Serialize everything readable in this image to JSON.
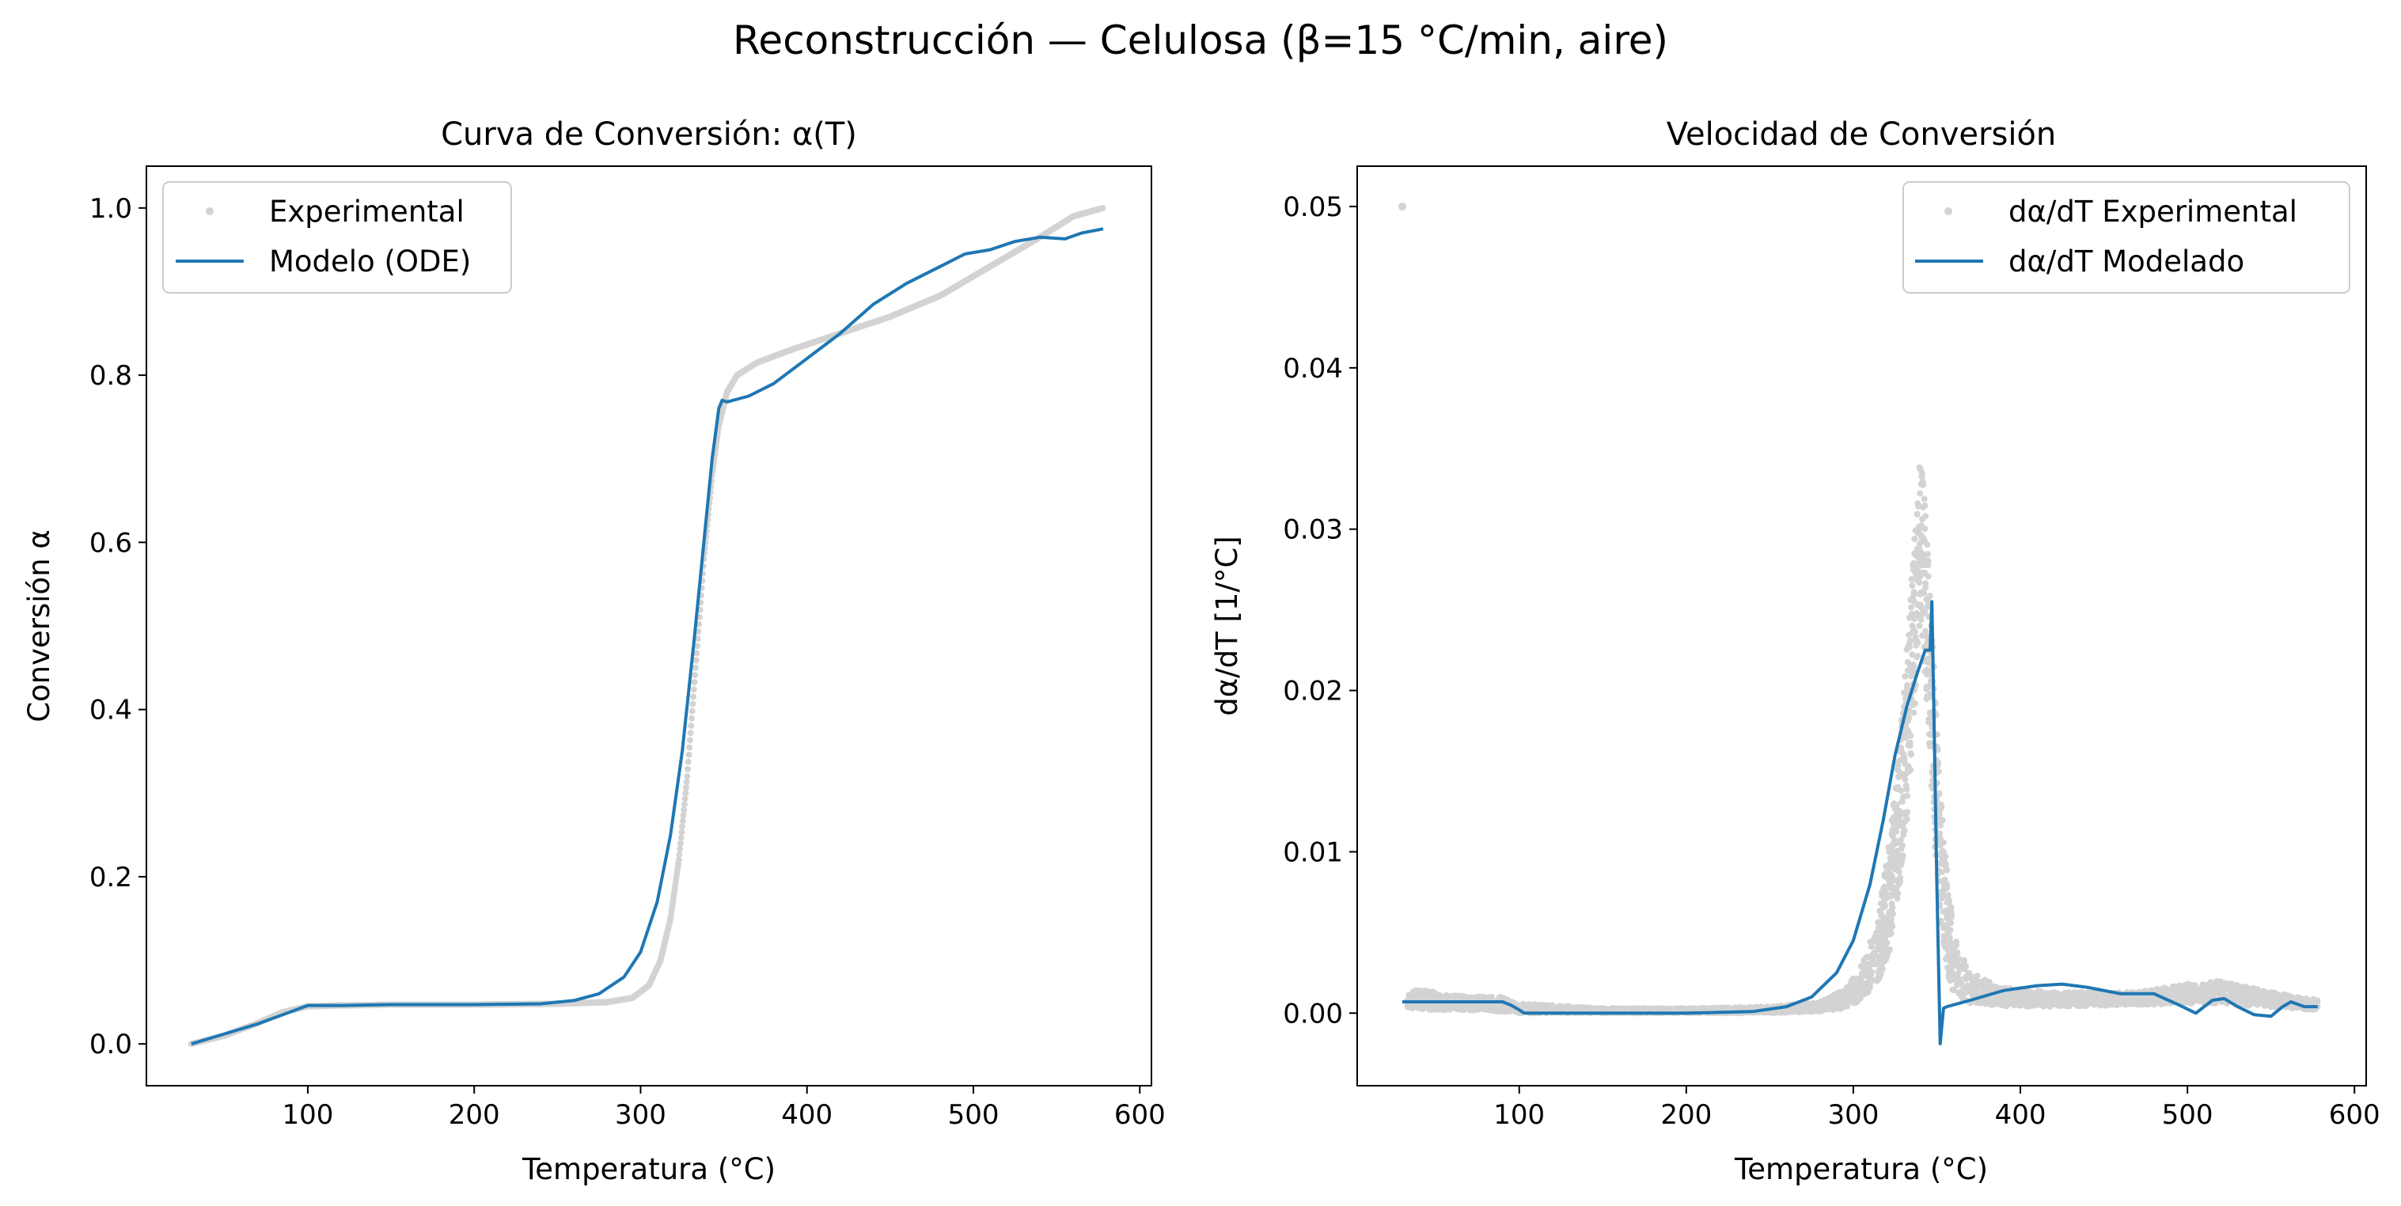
{
  "figure": {
    "suptitle": "Reconstrucción — Celulosa (β=15 °C/min, aire)"
  },
  "colors": {
    "experimental": "#d3d3d3",
    "model": "#1f77b4",
    "legend_border": "#cccccc"
  },
  "chart_data": [
    {
      "id": "left",
      "type": "line",
      "title": "Curva de Conversión: α(T)",
      "xlabel": "Temperatura (°C)",
      "ylabel": "Conversión α",
      "xlim": [
        3,
        607
      ],
      "ylim": [
        -0.05,
        1.05
      ],
      "xticks": [
        100,
        200,
        300,
        400,
        500,
        600
      ],
      "xtick_labels": [
        "100",
        "200",
        "300",
        "400",
        "500",
        "600"
      ],
      "yticks": [
        0.0,
        0.2,
        0.4,
        0.6,
        0.8,
        1.0
      ],
      "ytick_labels": [
        "0.0",
        "0.2",
        "0.4",
        "0.6",
        "0.8",
        "1.0"
      ],
      "grid": false,
      "legend_position": "upper-left",
      "legend": [
        "Experimental",
        "Modelo (ODE)"
      ],
      "series": [
        {
          "name": "Experimental",
          "style": "points",
          "points": [
            [
              30,
              0.0
            ],
            [
              50,
              0.01
            ],
            [
              70,
              0.025
            ],
            [
              85,
              0.038
            ],
            [
              100,
              0.045
            ],
            [
              120,
              0.046
            ],
            [
              150,
              0.047
            ],
            [
              200,
              0.047
            ],
            [
              250,
              0.048
            ],
            [
              280,
              0.05
            ],
            [
              295,
              0.055
            ],
            [
              305,
              0.07
            ],
            [
              312,
              0.1
            ],
            [
              318,
              0.15
            ],
            [
              323,
              0.22
            ],
            [
              328,
              0.32
            ],
            [
              333,
              0.45
            ],
            [
              338,
              0.58
            ],
            [
              343,
              0.68
            ],
            [
              347,
              0.74
            ],
            [
              352,
              0.78
            ],
            [
              358,
              0.8
            ],
            [
              370,
              0.815
            ],
            [
              390,
              0.83
            ],
            [
              420,
              0.85
            ],
            [
              450,
              0.87
            ],
            [
              480,
              0.895
            ],
            [
              510,
              0.93
            ],
            [
              540,
              0.965
            ],
            [
              560,
              0.99
            ],
            [
              578,
              1.0
            ]
          ]
        },
        {
          "name": "Modelo (ODE)",
          "style": "line",
          "points": [
            [
              30,
              0.0
            ],
            [
              50,
              0.012
            ],
            [
              70,
              0.024
            ],
            [
              85,
              0.035
            ],
            [
              100,
              0.046
            ],
            [
              120,
              0.046
            ],
            [
              150,
              0.047
            ],
            [
              200,
              0.047
            ],
            [
              240,
              0.048
            ],
            [
              260,
              0.052
            ],
            [
              275,
              0.06
            ],
            [
              290,
              0.08
            ],
            [
              300,
              0.11
            ],
            [
              310,
              0.17
            ],
            [
              318,
              0.25
            ],
            [
              325,
              0.35
            ],
            [
              332,
              0.48
            ],
            [
              338,
              0.6
            ],
            [
              343,
              0.7
            ],
            [
              347,
              0.76
            ],
            [
              349,
              0.77
            ],
            [
              352,
              0.768
            ],
            [
              365,
              0.775
            ],
            [
              380,
              0.79
            ],
            [
              400,
              0.82
            ],
            [
              420,
              0.85
            ],
            [
              440,
              0.885
            ],
            [
              460,
              0.91
            ],
            [
              480,
              0.93
            ],
            [
              495,
              0.945
            ],
            [
              510,
              0.95
            ],
            [
              525,
              0.96
            ],
            [
              540,
              0.965
            ],
            [
              555,
              0.963
            ],
            [
              565,
              0.97
            ],
            [
              578,
              0.975
            ]
          ]
        }
      ]
    },
    {
      "id": "right",
      "type": "line",
      "title": "Velocidad de Conversión",
      "xlabel": "Temperatura (°C)",
      "ylabel": "dα/dT [1/°C]",
      "xlim": [
        3,
        607
      ],
      "ylim": [
        -0.0045,
        0.0525
      ],
      "xticks": [
        100,
        200,
        300,
        400,
        500,
        600
      ],
      "xtick_labels": [
        "100",
        "200",
        "300",
        "400",
        "500",
        "600"
      ],
      "yticks": [
        0.0,
        0.01,
        0.02,
        0.03,
        0.04,
        0.05
      ],
      "ytick_labels": [
        "0.00",
        "0.01",
        "0.02",
        "0.03",
        "0.04",
        "0.05"
      ],
      "grid": false,
      "legend_position": "upper-right",
      "legend": [
        "dα/dT Experimental",
        "dα/dT Modelado"
      ],
      "series": [
        {
          "name": "dα/dT Experimental",
          "style": "points",
          "outlier": [
            30,
            0.05
          ],
          "bands": [
            [
              [
                33,
                0.0003,
                0.0012
              ],
              [
                40,
                0.0002,
                0.0015
              ],
              [
                60,
                0.0002,
                0.0011
              ],
              [
                90,
                0.0001,
                0.001
              ],
              [
                100,
                0.0,
                0.0006
              ],
              [
                150,
                0.0,
                0.0003
              ],
              [
                200,
                0.0,
                0.0003
              ],
              [
                250,
                0.0,
                0.0004
              ],
              [
                280,
                0.0001,
                0.0007
              ],
              [
                295,
                0.0003,
                0.0015
              ],
              [
                305,
                0.0008,
                0.003
              ],
              [
                315,
                0.002,
                0.006
              ],
              [
                322,
                0.004,
                0.011
              ],
              [
                328,
                0.008,
                0.017
              ],
              [
                333,
                0.013,
                0.024
              ],
              [
                337,
                0.019,
                0.03
              ],
              [
                340,
                0.024,
                0.0348
              ],
              [
                343,
                0.021,
                0.032
              ],
              [
                346,
                0.015,
                0.026
              ],
              [
                350,
                0.008,
                0.018
              ],
              [
                355,
                0.003,
                0.01
              ],
              [
                360,
                0.0012,
                0.005
              ],
              [
                370,
                0.0006,
                0.0025
              ],
              [
                390,
                0.0004,
                0.0016
              ],
              [
                420,
                0.0004,
                0.0013
              ],
              [
                470,
                0.0005,
                0.0013
              ],
              [
                500,
                0.0006,
                0.0018
              ],
              [
                520,
                0.0006,
                0.002
              ],
              [
                545,
                0.0004,
                0.0014
              ],
              [
                578,
                0.0002,
                0.0008
              ]
            ]
          ]
        },
        {
          "name": "dα/dT Modelado",
          "style": "line",
          "points": [
            [
              30,
              0.0007
            ],
            [
              60,
              0.0007
            ],
            [
              90,
              0.0007
            ],
            [
              95,
              0.0005
            ],
            [
              100,
              0.0002
            ],
            [
              103,
              0.0
            ],
            [
              110,
              0.0
            ],
            [
              150,
              0.0
            ],
            [
              200,
              0.0
            ],
            [
              240,
              0.0001
            ],
            [
              260,
              0.0004
            ],
            [
              275,
              0.001
            ],
            [
              290,
              0.0025
            ],
            [
              300,
              0.0045
            ],
            [
              310,
              0.008
            ],
            [
              318,
              0.012
            ],
            [
              325,
              0.016
            ],
            [
              332,
              0.019
            ],
            [
              338,
              0.021
            ],
            [
              343,
              0.0225
            ],
            [
              346,
              0.0225
            ],
            [
              347,
              0.0255
            ],
            [
              348,
              0.02
            ],
            [
              350,
              0.008
            ],
            [
              352,
              -0.0019
            ],
            [
              354,
              0.0003
            ],
            [
              356,
              0.0004
            ],
            [
              370,
              0.0008
            ],
            [
              390,
              0.0014
            ],
            [
              410,
              0.0017
            ],
            [
              425,
              0.0018
            ],
            [
              440,
              0.0016
            ],
            [
              460,
              0.0012
            ],
            [
              480,
              0.0012
            ],
            [
              495,
              0.0005
            ],
            [
              505,
              0.0
            ],
            [
              515,
              0.0008
            ],
            [
              522,
              0.0009
            ],
            [
              530,
              0.0004
            ],
            [
              540,
              -0.0001
            ],
            [
              550,
              -0.0002
            ],
            [
              557,
              0.0004
            ],
            [
              562,
              0.0007
            ],
            [
              570,
              0.0004
            ],
            [
              578,
              0.0004
            ]
          ]
        }
      ]
    }
  ]
}
